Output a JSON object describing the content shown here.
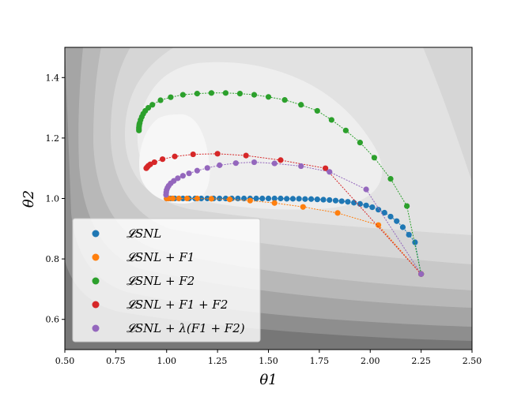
{
  "chart_data": {
    "type": "scatter",
    "xlabel": "θ1",
    "ylabel": "θ2",
    "xlim": [
      0.5,
      2.5
    ],
    "ylim": [
      0.5,
      1.5
    ],
    "x_ticks": [
      "0.50",
      "0.75",
      "1.00",
      "1.25",
      "1.50",
      "1.75",
      "2.00",
      "2.25",
      "2.50"
    ],
    "y_ticks": [
      "0.6",
      "0.8",
      "1.0",
      "1.2",
      "1.4"
    ],
    "legend_position": "bottom-left",
    "background": "grayscale filled contour",
    "series": [
      {
        "name": "𝓛SNL",
        "color": "#1f77b4",
        "x": [
          2.25,
          2.22,
          2.19,
          2.16,
          2.13,
          2.1,
          2.07,
          2.04,
          2.01,
          1.98,
          1.95,
          1.92,
          1.89,
          1.86,
          1.83,
          1.8,
          1.77,
          1.74,
          1.71,
          1.68,
          1.65,
          1.62,
          1.59,
          1.56,
          1.53,
          1.5,
          1.47,
          1.44,
          1.41,
          1.38,
          1.35,
          1.32,
          1.29,
          1.26,
          1.23,
          1.2,
          1.17,
          1.14,
          1.11,
          1.08,
          1.06,
          1.04,
          1.02,
          1.01,
          1.0
        ],
        "y": [
          0.75,
          0.855,
          0.88,
          0.905,
          0.925,
          0.94,
          0.953,
          0.963,
          0.971,
          0.977,
          0.982,
          0.986,
          0.989,
          0.991,
          0.993,
          0.995,
          0.996,
          0.997,
          0.998,
          0.998,
          0.999,
          0.999,
          0.999,
          1.0,
          1.0,
          1.0,
          1.0,
          1.0,
          1.0,
          1.0,
          1.0,
          1.0,
          1.0,
          1.0,
          1.0,
          1.0,
          1.0,
          1.0,
          1.0,
          1.0,
          1.0,
          1.0,
          1.0,
          1.0,
          1.0
        ]
      },
      {
        "name": "𝓛SNL + F1",
        "color": "#ff7f0e",
        "x": [
          2.25,
          2.04,
          1.84,
          1.67,
          1.53,
          1.41,
          1.31,
          1.22,
          1.15,
          1.1,
          1.06,
          1.03,
          1.01,
          1.0
        ],
        "y": [
          0.75,
          0.912,
          0.952,
          0.972,
          0.985,
          0.993,
          0.997,
          0.999,
          1.0,
          1.0,
          1.0,
          1.0,
          1.0,
          1.0
        ]
      },
      {
        "name": "𝓛SNL + F2",
        "color": "#2ca02c",
        "x": [
          2.25,
          2.18,
          2.1,
          2.02,
          1.95,
          1.88,
          1.81,
          1.74,
          1.66,
          1.58,
          1.5,
          1.43,
          1.36,
          1.29,
          1.22,
          1.15,
          1.08,
          1.02,
          0.97,
          0.93,
          0.91,
          0.895,
          0.885,
          0.878,
          0.872,
          0.868,
          0.866,
          0.865,
          0.864,
          0.864,
          0.864
        ],
        "y": [
          0.75,
          0.975,
          1.065,
          1.135,
          1.185,
          1.225,
          1.26,
          1.29,
          1.31,
          1.326,
          1.336,
          1.343,
          1.347,
          1.349,
          1.349,
          1.347,
          1.343,
          1.335,
          1.325,
          1.31,
          1.3,
          1.29,
          1.28,
          1.27,
          1.26,
          1.25,
          1.245,
          1.24,
          1.235,
          1.23,
          1.225
        ]
      },
      {
        "name": "𝓛SNL + F1 + F2",
        "color": "#d62728",
        "x": [
          2.25,
          1.78,
          1.56,
          1.39,
          1.25,
          1.13,
          1.04,
          0.98,
          0.94,
          0.92,
          0.91,
          0.905,
          0.9
        ],
        "y": [
          0.75,
          1.1,
          1.127,
          1.142,
          1.148,
          1.146,
          1.139,
          1.13,
          1.12,
          1.113,
          1.108,
          1.104,
          1.1
        ]
      },
      {
        "name": "𝓛SNL + λ(F1 + F2)",
        "color": "#9467bd",
        "x": [
          2.25,
          1.98,
          1.8,
          1.66,
          1.53,
          1.43,
          1.34,
          1.26,
          1.2,
          1.15,
          1.11,
          1.08,
          1.055,
          1.035,
          1.02,
          1.01,
          1.004,
          1.0,
          0.998,
          0.997
        ],
        "y": [
          0.75,
          1.03,
          1.088,
          1.107,
          1.116,
          1.12,
          1.117,
          1.11,
          1.101,
          1.092,
          1.083,
          1.075,
          1.067,
          1.058,
          1.05,
          1.042,
          1.035,
          1.028,
          1.02,
          1.012
        ]
      }
    ]
  }
}
